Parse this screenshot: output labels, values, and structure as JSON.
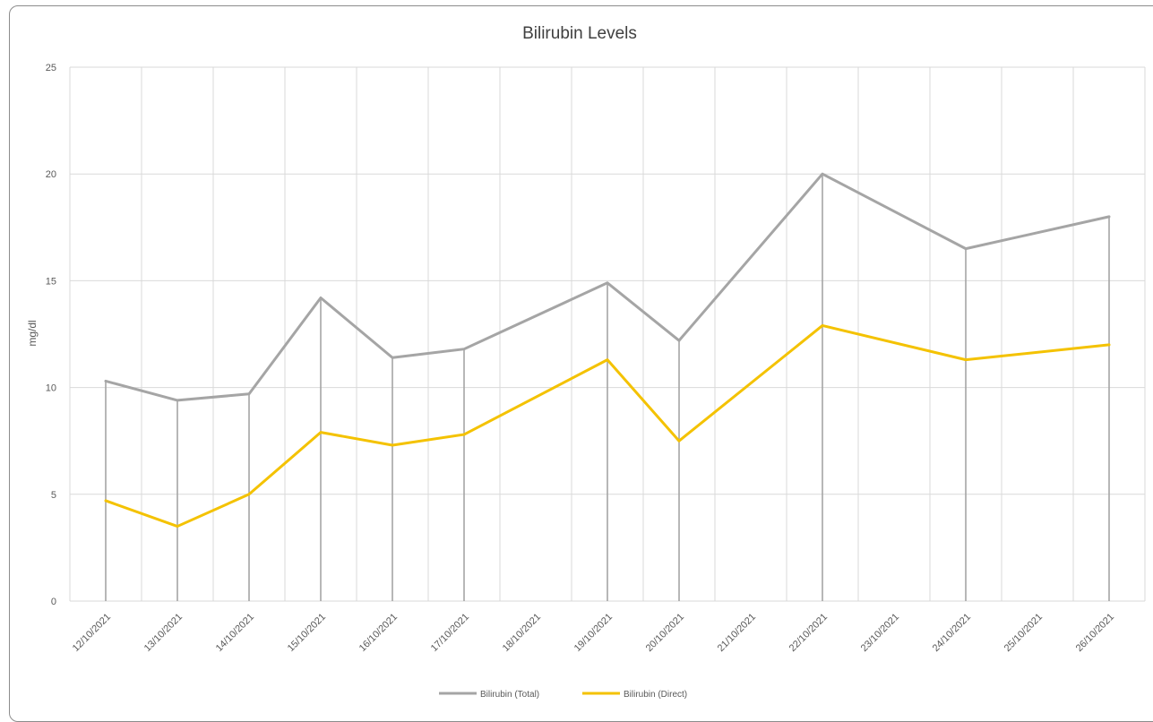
{
  "chart_data": {
    "type": "line",
    "title": "Bilirubin Levels",
    "xlabel": "",
    "ylabel": "mg/dl",
    "ylim": [
      0,
      25
    ],
    "yticks": [
      0,
      5,
      10,
      15,
      20,
      25
    ],
    "grid": true,
    "legend_position": "bottom",
    "categories": [
      "12/10/2021",
      "13/10/2021",
      "14/10/2021",
      "15/10/2021",
      "16/10/2021",
      "17/10/2021",
      "18/10/2021",
      "19/10/2021",
      "20/10/2021",
      "21/10/2021",
      "22/10/2021",
      "23/10/2021",
      "24/10/2021",
      "25/10/2021",
      "26/10/2021"
    ],
    "series": [
      {
        "name": "Bilirubin (Total)",
        "color": "#a5a5a5",
        "points": [
          {
            "x": "12/10/2021",
            "y": 10.3
          },
          {
            "x": "13/10/2021",
            "y": 9.4
          },
          {
            "x": "14/10/2021",
            "y": 9.7
          },
          {
            "x": "15/10/2021",
            "y": 14.2
          },
          {
            "x": "16/10/2021",
            "y": 11.4
          },
          {
            "x": "17/10/2021",
            "y": 11.8
          },
          {
            "x": "19/10/2021",
            "y": 14.9
          },
          {
            "x": "20/10/2021",
            "y": 12.2
          },
          {
            "x": "22/10/2021",
            "y": 20.0
          },
          {
            "x": "24/10/2021",
            "y": 16.5
          },
          {
            "x": "26/10/2021",
            "y": 18.0
          }
        ]
      },
      {
        "name": "Bilirubin (Direct)",
        "color": "#f4c200",
        "points": [
          {
            "x": "12/10/2021",
            "y": 4.7
          },
          {
            "x": "13/10/2021",
            "y": 3.5
          },
          {
            "x": "14/10/2021",
            "y": 5.0
          },
          {
            "x": "15/10/2021",
            "y": 7.9
          },
          {
            "x": "16/10/2021",
            "y": 7.3
          },
          {
            "x": "17/10/2021",
            "y": 7.8
          },
          {
            "x": "19/10/2021",
            "y": 11.3
          },
          {
            "x": "20/10/2021",
            "y": 7.5
          },
          {
            "x": "22/10/2021",
            "y": 12.9
          },
          {
            "x": "24/10/2021",
            "y": 11.3
          },
          {
            "x": "26/10/2021",
            "y": 12.0
          }
        ]
      }
    ],
    "drop_lines": true,
    "gridline_color": "#d9d9d9",
    "drop_line_color": "#a5a5a5"
  }
}
